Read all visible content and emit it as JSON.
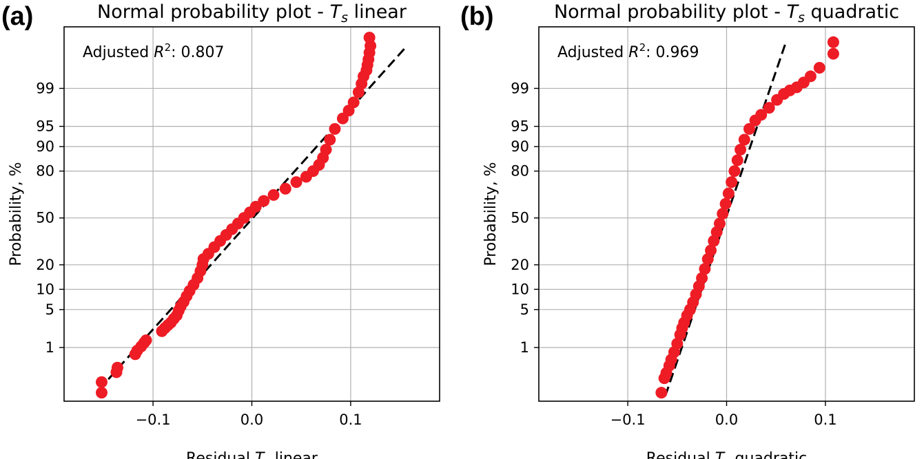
{
  "chart_data": [
    {
      "type": "scatter",
      "panel_label": "(a)",
      "title": "Normal probability plot - ",
      "title_var": "T",
      "title_sub": "s",
      "title_suffix": " linear",
      "xlabel": "Residual ",
      "xlabel_var": "T",
      "xlabel_sub": "s",
      "xlabel_suffix": " linear",
      "ylabel": "Probability, %",
      "annotation": {
        "prefix": "Adjusted ",
        "var": "R",
        "sup": "2",
        "suffix": ": 0.807"
      },
      "xlim": [
        -0.19,
        0.19
      ],
      "xticks": [
        -0.1,
        0.0,
        0.1
      ],
      "xtick_labels": [
        "−0.1",
        "0.0",
        "0.1"
      ],
      "yscale": "normal-probability",
      "yticks": [
        1,
        5,
        10,
        20,
        50,
        80,
        90,
        95,
        99
      ],
      "ylim_percent": [
        0.05,
        99.97
      ],
      "grid": true,
      "marker_color": "#ee1c25",
      "series": [
        {
          "points": [
            [
              -0.152,
              0.085
            ],
            [
              -0.152,
              0.16
            ],
            [
              -0.137,
              0.28
            ],
            [
              -0.136,
              0.36
            ],
            [
              -0.118,
              0.72
            ],
            [
              -0.116,
              0.86
            ],
            [
              -0.112,
              1.05
            ],
            [
              -0.109,
              1.25
            ],
            [
              -0.107,
              1.4
            ],
            [
              -0.091,
              2.1
            ],
            [
              -0.088,
              2.4
            ],
            [
              -0.085,
              2.7
            ],
            [
              -0.082,
              3.0
            ],
            [
              -0.079,
              3.5
            ],
            [
              -0.076,
              4.0
            ],
            [
              -0.074,
              4.8
            ],
            [
              -0.072,
              5.6
            ],
            [
              -0.069,
              6.6
            ],
            [
              -0.066,
              8.0
            ],
            [
              -0.063,
              9.5
            ],
            [
              -0.059,
              11.5
            ],
            [
              -0.055,
              14.0
            ],
            [
              -0.052,
              17.0
            ],
            [
              -0.05,
              20.0
            ],
            [
              -0.049,
              23.0
            ],
            [
              -0.044,
              26.0
            ],
            [
              -0.038,
              30.0
            ],
            [
              -0.032,
              34.0
            ],
            [
              -0.026,
              38.0
            ],
            [
              -0.02,
              42.0
            ],
            [
              -0.014,
              46.0
            ],
            [
              -0.008,
              50.0
            ],
            [
              -0.002,
              54.0
            ],
            [
              0.004,
              58.0
            ],
            [
              0.012,
              62.0
            ],
            [
              0.022,
              66.0
            ],
            [
              0.034,
              70.0
            ],
            [
              0.045,
              74.0
            ],
            [
              0.055,
              77.0
            ],
            [
              0.062,
              80.0
            ],
            [
              0.068,
              83.0
            ],
            [
              0.072,
              86.0
            ],
            [
              0.075,
              89.0
            ],
            [
              0.079,
              92.0
            ],
            [
              0.084,
              94.5
            ],
            [
              0.092,
              96.3
            ],
            [
              0.098,
              97.3
            ],
            [
              0.103,
              98.1
            ],
            [
              0.108,
              98.8
            ],
            [
              0.111,
              99.2
            ],
            [
              0.113,
              99.45
            ],
            [
              0.116,
              99.6
            ],
            [
              0.117,
              99.7
            ],
            [
              0.118,
              99.78
            ],
            [
              0.119,
              99.85
            ],
            [
              0.12,
              99.9
            ],
            [
              0.119,
              99.94
            ]
          ],
          "fit": {
            "x": [
              -0.155,
              0.157
            ],
            "p": [
              0.1,
              99.9
            ]
          }
        }
      ]
    },
    {
      "type": "scatter",
      "panel_label": "(b)",
      "title": "Normal probability plot - ",
      "title_var": "T",
      "title_sub": "s",
      "title_suffix": " quadratic",
      "xlabel": "Residual ",
      "xlabel_var": "T",
      "xlabel_sub": "s",
      "xlabel_suffix": " quadratic",
      "ylabel": "Probability, %",
      "annotation": {
        "prefix": "Adjusted ",
        "var": "R",
        "sup": "2",
        "suffix": ": 0.969"
      },
      "xlim": [
        -0.19,
        0.19
      ],
      "xticks": [
        -0.1,
        0.0,
        0.1
      ],
      "xtick_labels": [
        "−0.1",
        "0.0",
        "0.1"
      ],
      "yscale": "normal-probability",
      "yticks": [
        1,
        5,
        10,
        20,
        50,
        80,
        90,
        95,
        99
      ],
      "ylim_percent": [
        0.05,
        99.97
      ],
      "grid": true,
      "marker_color": "#ee1c25",
      "series": [
        {
          "points": [
            [
              -0.066,
              0.085
            ],
            [
              -0.063,
              0.2
            ],
            [
              -0.061,
              0.27
            ],
            [
              -0.058,
              0.4
            ],
            [
              -0.056,
              0.55
            ],
            [
              -0.053,
              0.8
            ],
            [
              -0.05,
              1.2
            ],
            [
              -0.047,
              1.8
            ],
            [
              -0.045,
              2.4
            ],
            [
              -0.043,
              3.0
            ],
            [
              -0.04,
              4.0
            ],
            [
              -0.037,
              5.0
            ],
            [
              -0.034,
              6.5
            ],
            [
              -0.031,
              8.5
            ],
            [
              -0.028,
              11.0
            ],
            [
              -0.025,
              14.0
            ],
            [
              -0.022,
              18.0
            ],
            [
              -0.019,
              23.0
            ],
            [
              -0.016,
              28.0
            ],
            [
              -0.013,
              34.0
            ],
            [
              -0.01,
              40.0
            ],
            [
              -0.007,
              46.0
            ],
            [
              -0.004,
              53.0
            ],
            [
              -0.001,
              60.0
            ],
            [
              0.002,
              67.0
            ],
            [
              0.005,
              74.0
            ],
            [
              0.008,
              80.0
            ],
            [
              0.011,
              85.0
            ],
            [
              0.014,
              89.0
            ],
            [
              0.018,
              92.0
            ],
            [
              0.023,
              94.5
            ],
            [
              0.029,
              96.0
            ],
            [
              0.035,
              96.8
            ],
            [
              0.043,
              97.6
            ],
            [
              0.051,
              98.3
            ],
            [
              0.058,
              98.7
            ],
            [
              0.064,
              98.9
            ],
            [
              0.071,
              99.05
            ],
            [
              0.078,
              99.25
            ],
            [
              0.085,
              99.45
            ],
            [
              0.094,
              99.65
            ],
            [
              0.108,
              99.84
            ],
            [
              0.108,
              99.92
            ]
          ],
          "fit": {
            "x": [
              -0.062,
              0.06
            ],
            "p": [
              0.07,
              99.92
            ]
          }
        }
      ]
    }
  ]
}
